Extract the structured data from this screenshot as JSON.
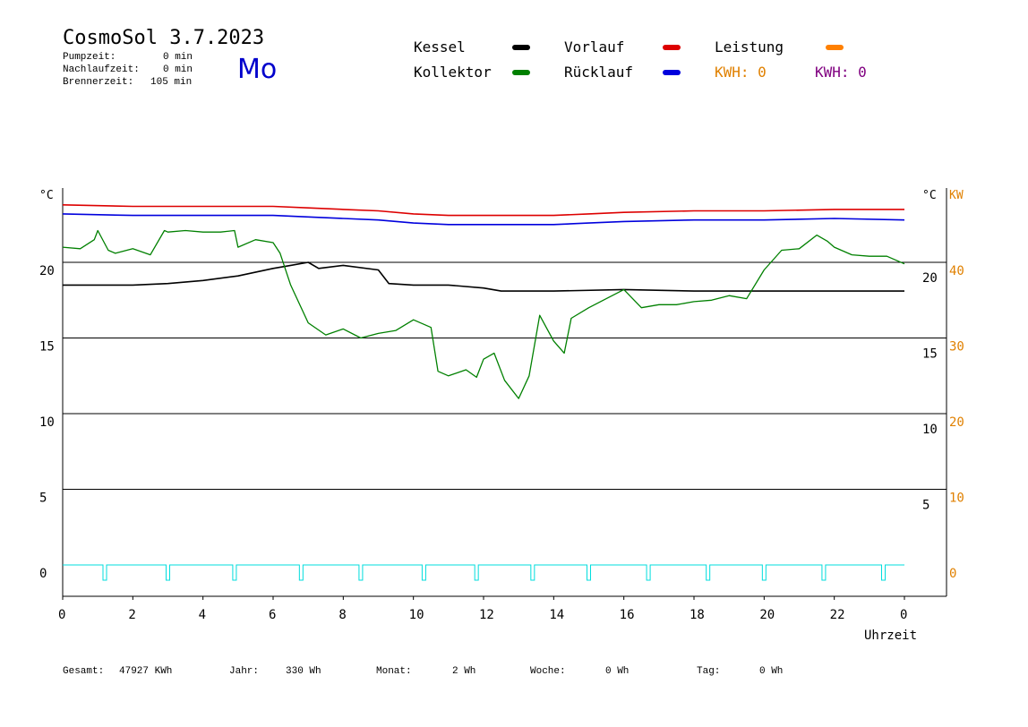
{
  "header": {
    "title": "CosmoSol 3.7.2023",
    "day": "Mo",
    "stats": [
      {
        "label": "Pumpzeit:",
        "value": "0 min"
      },
      {
        "label": "Nachlaufzeit:",
        "value": "0 min"
      },
      {
        "label": "Brennerzeit:",
        "value": "105 min"
      }
    ]
  },
  "legend": {
    "kessel": "Kessel",
    "kollektor": "Kollektor",
    "vorlauf": "Vorlauf",
    "ruecklauf": "Rücklauf",
    "leistung": "Leistung",
    "kwh_orange": "KWH: 0",
    "kwh_purple": "KWH: 0"
  },
  "colors": {
    "kessel": "#000000",
    "kollektor": "#008000",
    "vorlauf": "#dd0000",
    "ruecklauf": "#0000dd",
    "leistung": "#ff8000",
    "kwh_purple": "#800080",
    "pump": "#00dddd"
  },
  "footer": {
    "gesamt_label": "Gesamt:",
    "gesamt_value": "47927 KWh",
    "jahr_label": "Jahr:",
    "jahr_value": "330 Wh",
    "monat_label": "Monat:",
    "monat_value": "2 Wh",
    "woche_label": "Woche:",
    "woche_value": "0 Wh",
    "tag_label": "Tag:",
    "tag_value": "0 Wh"
  },
  "chart_data": {
    "type": "line",
    "xlabel": "Uhrzeit",
    "ylabel_left": "°C",
    "ylabel_right_temp": "°C",
    "ylabel_right_power": "KW",
    "xlim": [
      0,
      24
    ],
    "ylim": [
      -2,
      25
    ],
    "x_ticks": [
      "0",
      "2",
      "4",
      "6",
      "8",
      "10",
      "12",
      "14",
      "16",
      "18",
      "20",
      "22",
      "0"
    ],
    "y_ticks_left": [
      "0",
      "5",
      "10",
      "15",
      "20"
    ],
    "y_ticks_right_temp": [
      "5",
      "10",
      "15",
      "20"
    ],
    "y_ticks_right_power": [
      "0",
      "10",
      "20",
      "30",
      "40",
      "KW"
    ],
    "grid": true,
    "series": [
      {
        "name": "Vorlauf",
        "x": [
          0,
          2,
          4,
          6,
          7,
          8,
          9,
          10,
          11,
          12,
          13,
          14,
          15,
          16,
          18,
          20,
          22,
          24
        ],
        "y": [
          23.8,
          23.7,
          23.7,
          23.7,
          23.6,
          23.5,
          23.4,
          23.2,
          23.1,
          23.1,
          23.1,
          23.1,
          23.2,
          23.3,
          23.4,
          23.4,
          23.5,
          23.5
        ]
      },
      {
        "name": "Rücklauf",
        "x": [
          0,
          2,
          4,
          6,
          7,
          8,
          9,
          10,
          11,
          12,
          13,
          14,
          15,
          16,
          18,
          20,
          22,
          24
        ],
        "y": [
          23.2,
          23.1,
          23.1,
          23.1,
          23.0,
          22.9,
          22.8,
          22.6,
          22.5,
          22.5,
          22.5,
          22.5,
          22.6,
          22.7,
          22.8,
          22.8,
          22.9,
          22.8
        ]
      },
      {
        "name": "Kessel",
        "x": [
          0,
          1,
          2,
          3,
          4,
          5,
          6,
          6.5,
          7,
          7.3,
          8,
          9,
          9.3,
          10,
          11,
          12,
          12.5,
          14,
          16,
          18,
          20,
          22,
          24
        ],
        "y": [
          18.5,
          18.5,
          18.5,
          18.6,
          18.8,
          19.1,
          19.6,
          19.8,
          20.0,
          19.6,
          19.8,
          19.5,
          18.6,
          18.5,
          18.5,
          18.3,
          18.1,
          18.1,
          18.2,
          18.1,
          18.1,
          18.1,
          18.1
        ]
      },
      {
        "name": "Kollektor",
        "x": [
          0,
          0.5,
          0.9,
          1.0,
          1.3,
          1.5,
          2.0,
          2.5,
          2.9,
          3.0,
          3.5,
          4.0,
          4.5,
          4.9,
          5.0,
          5.5,
          6.0,
          6.2,
          6.5,
          7.0,
          7.5,
          8.0,
          8.5,
          9.0,
          9.5,
          10.0,
          10.5,
          10.7,
          11.0,
          11.5,
          11.8,
          12.0,
          12.3,
          12.6,
          13.0,
          13.3,
          13.6,
          14.0,
          14.3,
          14.5,
          15.0,
          15.5,
          16.0,
          16.5,
          17.0,
          17.5,
          18.0,
          18.5,
          19.0,
          19.5,
          20.0,
          20.5,
          21.0,
          21.5,
          21.8,
          22.0,
          22.5,
          23.0,
          23.5,
          24.0
        ],
        "y": [
          21,
          20.9,
          21.5,
          22.1,
          20.8,
          20.6,
          20.9,
          20.5,
          22.1,
          22.0,
          22.1,
          22.0,
          22.0,
          22.1,
          21.0,
          21.5,
          21.3,
          20.6,
          18.5,
          16.0,
          15.2,
          15.6,
          15.0,
          15.3,
          15.5,
          16.2,
          15.7,
          12.8,
          12.5,
          12.9,
          12.4,
          13.6,
          14.0,
          12.2,
          11.0,
          12.5,
          16.5,
          14.8,
          14.0,
          16.3,
          17.0,
          17.6,
          18.2,
          17.0,
          17.2,
          17.2,
          17.4,
          17.5,
          17.8,
          17.6,
          19.5,
          20.8,
          20.9,
          21.8,
          21.4,
          21.0,
          20.5,
          20.4,
          20.4,
          19.9
        ]
      }
    ],
    "pump_pulses_hours": [
      1.2,
      3.0,
      4.9,
      6.8,
      8.5,
      10.3,
      11.8,
      13.4,
      15.0,
      16.7,
      18.4,
      20.0,
      21.7,
      23.4
    ]
  }
}
